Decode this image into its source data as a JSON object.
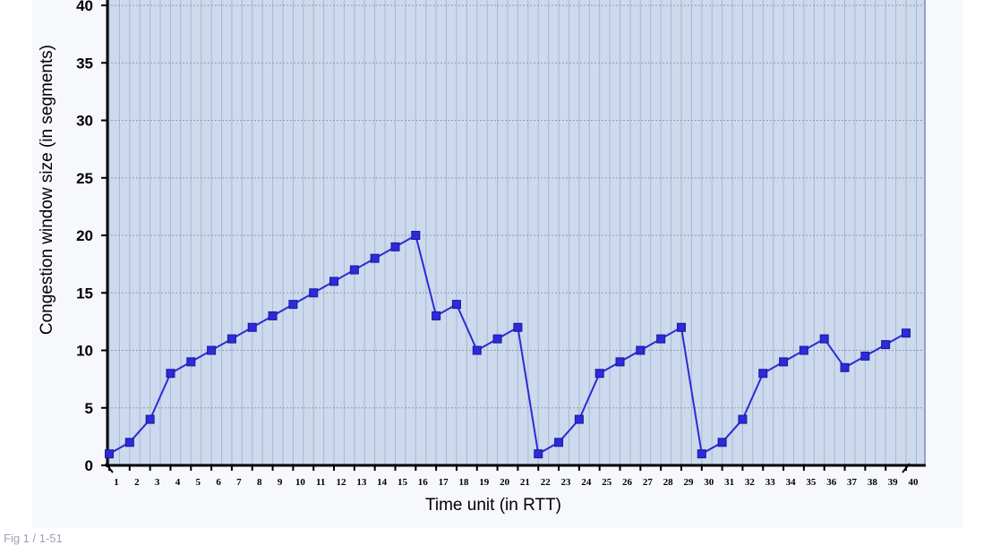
{
  "chart_data": {
    "type": "line",
    "title": "",
    "xlabel": "Time unit (in RTT)",
    "ylabel": "Congestion window size (in segments)",
    "xlim": [
      1,
      40
    ],
    "ylim": [
      0,
      40
    ],
    "yticks": [
      "0",
      "5",
      "10",
      "15",
      "20",
      "25",
      "30",
      "35",
      "40"
    ],
    "xticks": [
      "1",
      "2",
      "3",
      "4",
      "5",
      "6",
      "7",
      "8",
      "9",
      "10",
      "11",
      "12",
      "13",
      "14",
      "15",
      "16",
      "17",
      "18",
      "19",
      "20",
      "21",
      "22",
      "23",
      "24",
      "25",
      "26",
      "27",
      "28",
      "29",
      "30",
      "31",
      "32",
      "33",
      "34",
      "35",
      "36",
      "37",
      "38",
      "39",
      "40"
    ],
    "grid": true,
    "x": [
      1,
      2,
      3,
      4,
      5,
      6,
      7,
      8,
      9,
      10,
      11,
      12,
      13,
      14,
      15,
      16,
      17,
      18,
      19,
      20,
      21,
      22,
      23,
      24,
      25,
      26,
      27,
      28,
      29,
      30,
      31,
      32,
      33,
      34,
      35,
      36,
      37,
      38,
      39,
      40
    ],
    "series": [
      {
        "values": [
          1,
          2,
          4,
          8,
          9,
          10,
          11,
          12,
          13,
          14,
          15,
          16,
          17,
          18,
          19,
          20,
          13,
          14,
          10,
          11,
          12,
          1,
          2,
          4,
          8,
          9,
          10,
          11,
          12,
          1,
          2,
          4,
          8,
          9,
          10,
          11,
          8.5,
          9.5,
          10.5,
          11.5
        ],
        "color": "#2b2bd8"
      }
    ],
    "corner_note": "Fig 1 / 1-51"
  }
}
